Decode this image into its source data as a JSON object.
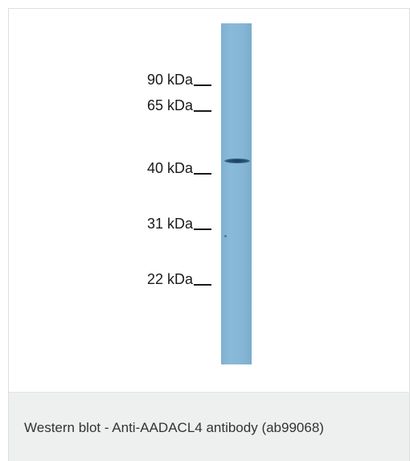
{
  "figure": {
    "markers": [
      {
        "label": "90 kDa"
      },
      {
        "label": "65 kDa"
      },
      {
        "label": "40 kDa"
      },
      {
        "label": "31 kDa"
      },
      {
        "label": "22 kDa"
      }
    ],
    "lane_color": "#86b6d5",
    "band_color": "#1b3a52"
  },
  "caption": {
    "text": "Western blot - Anti-AADACL4 antibody (ab99068)"
  }
}
